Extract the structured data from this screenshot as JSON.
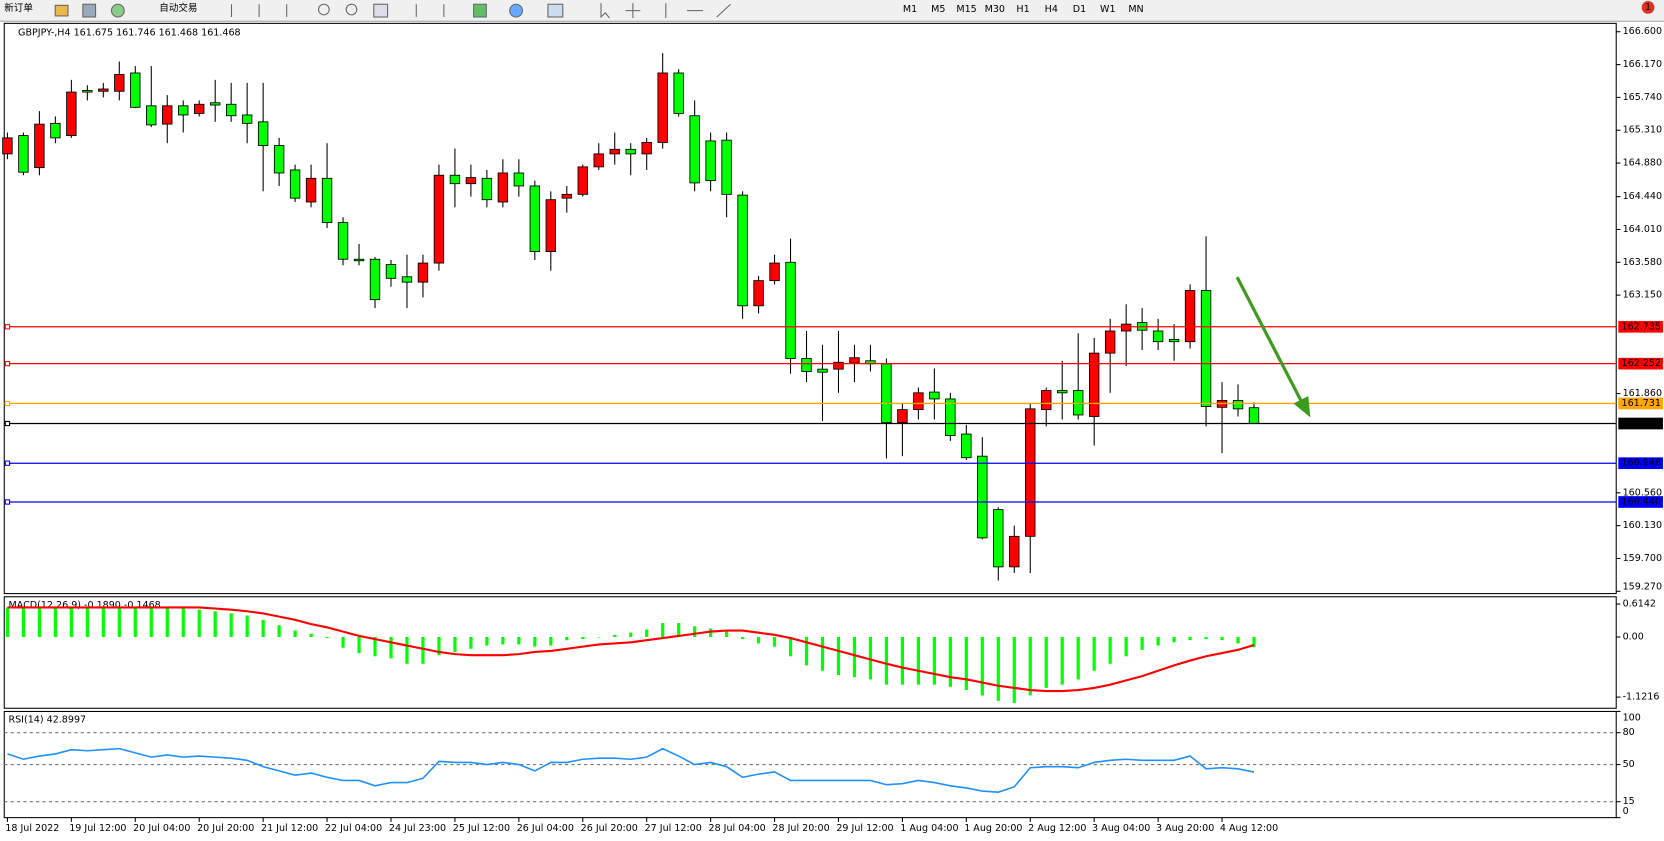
{
  "toolbar": {
    "buttons": [
      "新订单",
      "自动交易"
    ],
    "timeframes": [
      "M1",
      "M5",
      "M15",
      "M30",
      "H1",
      "H4",
      "D1",
      "W1",
      "MN"
    ],
    "notification_count": 1
  },
  "chart_data": [
    {
      "type": "candlestick",
      "title": "GBPJPY-,H4  161.675 161.746 161.468 161.468",
      "categories": [
        "18 Jul 2022",
        null,
        null,
        null,
        "19 Jul 12:00",
        null,
        null,
        null,
        "20 Jul 04:00",
        null,
        null,
        null,
        "20 Jul 20:00",
        null,
        null,
        null,
        "21 Jul 12:00",
        null,
        null,
        null,
        "22 Jul 04:00",
        null,
        null,
        null,
        "24 Jul 23:00",
        null,
        null,
        null,
        "25 Jul 12:00",
        null,
        null,
        null,
        "26 Jul 04:00",
        null,
        null,
        null,
        "26 Jul 20:00",
        null,
        null,
        null,
        "27 Jul 12:00",
        null,
        null,
        null,
        "28 Jul 04:00",
        null,
        null,
        null,
        "28 Jul 20:00",
        null,
        null,
        null,
        "29 Jul 12:00",
        null,
        null,
        null,
        "1 Aug 04:00",
        null,
        null,
        null,
        "1 Aug 20:00",
        null,
        null,
        null,
        "2 Aug 12:00",
        null,
        null,
        null,
        "3 Aug 04:00",
        null,
        null,
        null,
        "3 Aug 20:00",
        null,
        null,
        null,
        "4 Aug 12:00",
        null,
        null
      ],
      "open": [
        165.0,
        165.24,
        164.82,
        165.4,
        165.24,
        165.83,
        165.82,
        165.82,
        166.06,
        165.63,
        165.39,
        165.63,
        165.53,
        165.67,
        165.65,
        165.51,
        165.42,
        165.11,
        164.79,
        164.37,
        164.68,
        164.1,
        163.62,
        163.62,
        163.55,
        163.39,
        163.32,
        163.57,
        164.72,
        164.61,
        164.68,
        164.37,
        164.75,
        164.58,
        163.72,
        164.42,
        164.47,
        164.83,
        165.0,
        165.06,
        165.0,
        165.15,
        166.06,
        165.5,
        165.17,
        165.18,
        164.46,
        163.01,
        163.34,
        163.58,
        162.32,
        162.18,
        162.18,
        162.26,
        162.29,
        162.25,
        161.48,
        161.65,
        161.88,
        161.79,
        161.33,
        161.04,
        160.34,
        159.59,
        159.99,
        161.65,
        161.9,
        161.9,
        161.56,
        162.39,
        162.68,
        162.79,
        162.68,
        162.57,
        162.54,
        163.21,
        161.68,
        161.77,
        161.675
      ],
      "high": [
        165.28,
        165.28,
        165.56,
        165.49,
        165.97,
        165.9,
        165.93,
        166.21,
        166.15,
        166.15,
        165.77,
        165.7,
        165.7,
        165.97,
        165.93,
        165.93,
        165.93,
        165.21,
        164.86,
        164.86,
        165.14,
        164.17,
        163.82,
        163.65,
        163.61,
        163.68,
        163.68,
        164.86,
        165.07,
        164.86,
        164.79,
        164.93,
        164.93,
        164.65,
        164.51,
        164.58,
        164.86,
        165.14,
        165.28,
        165.14,
        165.21,
        166.32,
        166.11,
        165.7,
        165.28,
        165.28,
        164.51,
        163.4,
        163.68,
        163.89,
        162.68,
        162.5,
        162.68,
        162.5,
        162.5,
        162.32,
        161.73,
        161.94,
        162.19,
        161.87,
        161.45,
        161.29,
        160.37,
        160.13,
        161.73,
        161.94,
        162.29,
        162.65,
        162.59,
        162.84,
        163.03,
        162.98,
        162.84,
        162.77,
        163.29,
        163.92,
        162.01,
        161.98,
        161.746
      ],
      "low": [
        164.93,
        164.72,
        164.72,
        165.14,
        165.21,
        165.7,
        165.74,
        165.7,
        165.6,
        165.35,
        165.14,
        165.28,
        165.49,
        165.42,
        165.42,
        165.14,
        164.51,
        164.58,
        164.37,
        164.3,
        164.03,
        163.54,
        163.54,
        162.98,
        163.26,
        162.98,
        163.12,
        163.47,
        164.3,
        164.44,
        164.3,
        164.3,
        164.44,
        163.61,
        163.47,
        164.23,
        164.44,
        164.79,
        164.86,
        164.72,
        164.79,
        165.07,
        165.49,
        164.51,
        164.51,
        164.17,
        162.84,
        162.91,
        163.29,
        162.12,
        162.01,
        161.5,
        161.87,
        162.01,
        162.15,
        161.01,
        161.04,
        161.52,
        161.52,
        161.24,
        160.99,
        159.95,
        159.41,
        159.51,
        159.51,
        161.43,
        161.52,
        161.52,
        161.18,
        161.87,
        162.22,
        162.43,
        162.43,
        162.29,
        162.45,
        161.43,
        161.08,
        161.56,
        161.468
      ],
      "close": [
        165.21,
        164.76,
        165.39,
        165.21,
        165.81,
        165.81,
        165.85,
        166.04,
        165.61,
        165.38,
        165.63,
        165.51,
        165.65,
        165.64,
        165.5,
        165.4,
        165.11,
        164.75,
        164.42,
        164.68,
        164.1,
        163.62,
        163.6,
        163.09,
        163.37,
        163.32,
        163.57,
        164.72,
        164.61,
        164.69,
        164.4,
        164.75,
        164.58,
        163.72,
        164.4,
        164.47,
        164.83,
        165.0,
        165.06,
        165.0,
        165.15,
        166.06,
        165.53,
        164.62,
        164.65,
        164.47,
        163.01,
        163.34,
        163.57,
        162.32,
        162.15,
        162.14,
        162.27,
        162.33,
        162.25,
        161.48,
        161.65,
        161.87,
        161.79,
        161.31,
        161.02,
        159.97,
        159.59,
        159.99,
        161.66,
        161.9,
        161.87,
        161.58,
        162.39,
        162.68,
        162.77,
        162.69,
        162.54,
        162.54,
        163.21,
        161.69,
        161.77,
        161.66,
        161.468
      ],
      "up_color": "#ff0000",
      "down_color": "#00ff00",
      "ylim": [
        159.24,
        166.71
      ],
      "yticks": [
        {
          "value": 166.6,
          "label": "166.600"
        },
        {
          "value": 166.17,
          "label": "166.170"
        },
        {
          "value": 165.74,
          "label": "165.740"
        },
        {
          "value": 165.31,
          "label": "165.310"
        },
        {
          "value": 164.88,
          "label": "164.880"
        },
        {
          "value": 164.44,
          "label": "164.440"
        },
        {
          "value": 164.01,
          "label": "164.010"
        },
        {
          "value": 163.58,
          "label": "163.580"
        },
        {
          "value": 163.15,
          "label": "163.150"
        },
        {
          "value": 161.86,
          "label": "161.860"
        },
        {
          "value": 160.56,
          "label": "160.560"
        },
        {
          "value": 160.13,
          "label": "160.130"
        },
        {
          "value": 159.7,
          "label": "159.700"
        },
        {
          "value": 159.27,
          "label": "159.270"
        }
      ],
      "hlines": [
        {
          "value": 162.735,
          "color": "#ff0000"
        },
        {
          "value": 162.252,
          "color": "#ff0000"
        },
        {
          "value": 161.731,
          "color": "#ffa500"
        },
        {
          "value": 161.468,
          "color": "#000000"
        },
        {
          "value": 160.948,
          "color": "#0000ff"
        },
        {
          "value": 160.44,
          "label": "160.440",
          "color": "#0000ff"
        }
      ],
      "grid": false
    },
    {
      "type": "macd",
      "title": "MACD(12,26,9) -0.1890 -0.1468",
      "series": [
        {
          "type": "bar",
          "color": "#00ff00",
          "values": [
            0.55,
            0.55,
            0.55,
            0.55,
            0.55,
            0.55,
            0.55,
            0.55,
            0.55,
            0.55,
            0.55,
            0.55,
            0.51,
            0.48,
            0.44,
            0.4,
            0.32,
            0.22,
            0.12,
            0.06,
            -0.02,
            -0.2,
            -0.3,
            -0.36,
            -0.4,
            -0.5,
            -0.5,
            -0.34,
            -0.28,
            -0.22,
            -0.16,
            -0.14,
            -0.14,
            -0.18,
            -0.16,
            -0.06,
            -0.04,
            -0.01,
            0.04,
            0.08,
            0.14,
            0.26,
            0.26,
            0.2,
            0.16,
            0.1,
            -0.04,
            -0.12,
            -0.18,
            -0.36,
            -0.53,
            -0.63,
            -0.71,
            -0.75,
            -0.79,
            -0.89,
            -0.89,
            -0.89,
            -0.89,
            -0.93,
            -0.99,
            -1.09,
            -1.19,
            -1.23,
            -1.09,
            -0.95,
            -0.89,
            -0.79,
            -0.63,
            -0.5,
            -0.36,
            -0.24,
            -0.16,
            -0.1,
            -0.06,
            -0.04,
            -0.06,
            -0.12,
            -0.19
          ]
        },
        {
          "type": "line",
          "color": "#ff0000",
          "values": [
            0.55,
            0.55,
            0.55,
            0.55,
            0.55,
            0.55,
            0.55,
            0.55,
            0.55,
            0.55,
            0.55,
            0.55,
            0.55,
            0.53,
            0.51,
            0.48,
            0.44,
            0.38,
            0.32,
            0.24,
            0.18,
            0.1,
            0.02,
            -0.04,
            -0.1,
            -0.16,
            -0.22,
            -0.28,
            -0.32,
            -0.34,
            -0.34,
            -0.34,
            -0.32,
            -0.28,
            -0.26,
            -0.22,
            -0.18,
            -0.14,
            -0.12,
            -0.1,
            -0.06,
            -0.02,
            0.02,
            0.06,
            0.1,
            0.12,
            0.12,
            0.08,
            0.04,
            -0.02,
            -0.1,
            -0.18,
            -0.26,
            -0.34,
            -0.42,
            -0.5,
            -0.57,
            -0.63,
            -0.69,
            -0.75,
            -0.79,
            -0.85,
            -0.91,
            -0.95,
            -0.99,
            -1.01,
            -1.01,
            -0.99,
            -0.95,
            -0.89,
            -0.81,
            -0.73,
            -0.63,
            -0.53,
            -0.44,
            -0.36,
            -0.3,
            -0.24,
            -0.15
          ]
        }
      ],
      "ylim": [
        -1.33,
        0.75
      ],
      "yticks": [
        0.6142,
        {
          "value": 0,
          "label": "0.00"
        },
        -1.1216
      ]
    },
    {
      "type": "line",
      "title": "RSI(14) 42.8997",
      "color": "#1e90ff",
      "values": [
        60,
        55,
        58,
        60,
        64,
        63,
        64,
        65,
        61,
        57,
        59,
        57,
        58,
        57,
        56,
        54,
        48,
        44,
        40,
        42,
        38,
        35,
        35,
        30,
        33,
        33,
        37,
        53,
        52,
        52,
        50,
        52,
        50,
        44,
        52,
        52,
        55,
        56,
        56,
        55,
        57,
        65,
        58,
        50,
        52,
        48,
        38,
        41,
        43,
        35,
        35,
        35,
        35,
        35,
        35,
        31,
        32,
        35,
        33,
        30,
        28,
        25,
        24,
        29,
        47,
        48,
        48,
        47,
        52,
        54,
        55,
        54,
        54,
        54,
        58,
        46,
        47,
        46,
        42.8997
      ],
      "ylim": [
        0,
        100
      ],
      "yticks": [
        100,
        80,
        50,
        15,
        0
      ]
    }
  ]
}
